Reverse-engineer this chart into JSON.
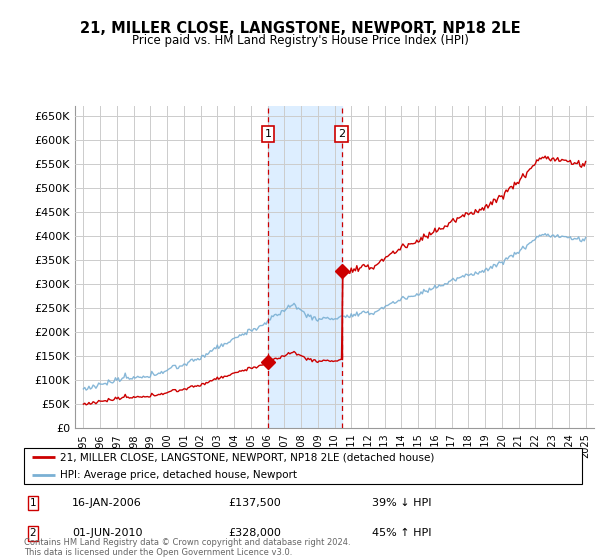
{
  "title": "21, MILLER CLOSE, LANGSTONE, NEWPORT, NP18 2LE",
  "subtitle": "Price paid vs. HM Land Registry's House Price Index (HPI)",
  "footer": "Contains HM Land Registry data © Crown copyright and database right 2024.\nThis data is licensed under the Open Government Licence v3.0.",
  "legend_line1": "21, MILLER CLOSE, LANGSTONE, NEWPORT, NP18 2LE (detached house)",
  "legend_line2": "HPI: Average price, detached house, Newport",
  "sale1_date": "16-JAN-2006",
  "sale1_price": "£137,500",
  "sale1_hpi": "39% ↓ HPI",
  "sale2_date": "01-JUN-2010",
  "sale2_price": "£328,000",
  "sale2_hpi": "45% ↑ HPI",
  "red_color": "#cc0000",
  "blue_color": "#7ab0d4",
  "grid_color": "#cccccc",
  "background_color": "#ffffff",
  "shaded_region_color": "#ddeeff",
  "ylim_min": 0,
  "ylim_max": 670000,
  "yticks": [
    0,
    50000,
    100000,
    150000,
    200000,
    250000,
    300000,
    350000,
    400000,
    450000,
    500000,
    550000,
    600000,
    650000
  ],
  "ytick_labels": [
    "£0",
    "£50K",
    "£100K",
    "£150K",
    "£200K",
    "£250K",
    "£300K",
    "£350K",
    "£400K",
    "£450K",
    "£500K",
    "£550K",
    "£600K",
    "£650K"
  ],
  "sale1_x": 2006.04,
  "sale1_y": 137500,
  "sale2_x": 2010.42,
  "sale2_y": 328000,
  "xlim_min": 1994.5,
  "xlim_max": 2025.5
}
